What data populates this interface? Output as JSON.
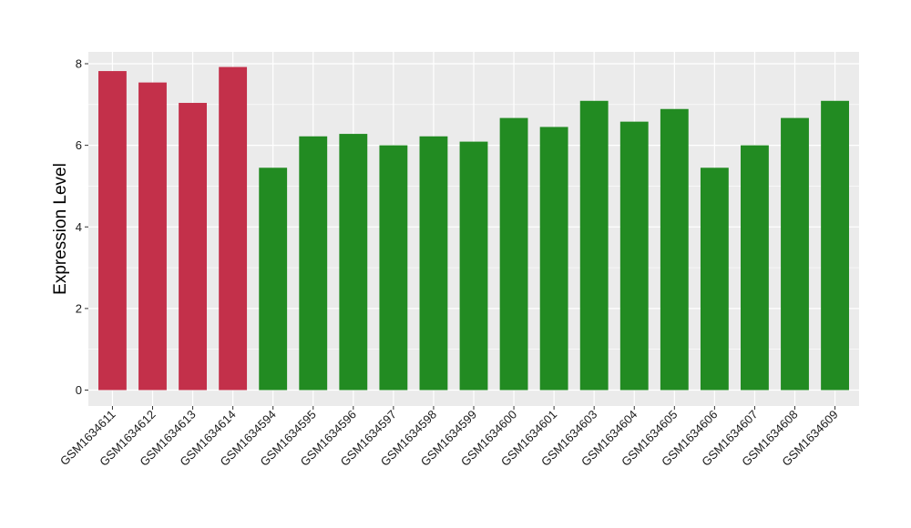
{
  "chart_data": {
    "type": "bar",
    "title": "",
    "xlabel": "",
    "ylabel": "Expression Level",
    "ylim": [
      0,
      8.3
    ],
    "yticks": [
      0,
      2,
      4,
      6,
      8
    ],
    "grid": true,
    "legend": "none",
    "categories": [
      "GSM1634611",
      "GSM1634612",
      "GSM1634613",
      "GSM1634614",
      "GSM1634594",
      "GSM1634595",
      "GSM1634596",
      "GSM1634597",
      "GSM1634598",
      "GSM1634599",
      "GSM1634600",
      "GSM1634601",
      "GSM1634603",
      "GSM1634604",
      "GSM1634605",
      "GSM1634606",
      "GSM1634607",
      "GSM1634608",
      "GSM1634609"
    ],
    "values": [
      7.82,
      7.54,
      7.04,
      7.92,
      5.45,
      6.22,
      6.28,
      6.0,
      6.22,
      6.09,
      6.67,
      6.45,
      7.09,
      6.58,
      6.89,
      5.45,
      6.0,
      6.67,
      7.09
    ],
    "bar_colors": [
      "#c3304a",
      "#c3304a",
      "#c3304a",
      "#c3304a",
      "#228b22",
      "#228b22",
      "#228b22",
      "#228b22",
      "#228b22",
      "#228b22",
      "#228b22",
      "#228b22",
      "#228b22",
      "#228b22",
      "#228b22",
      "#228b22",
      "#228b22",
      "#228b22",
      "#228b22"
    ],
    "panel_color": "#ebebeb",
    "grid_color": "#ffffff"
  }
}
